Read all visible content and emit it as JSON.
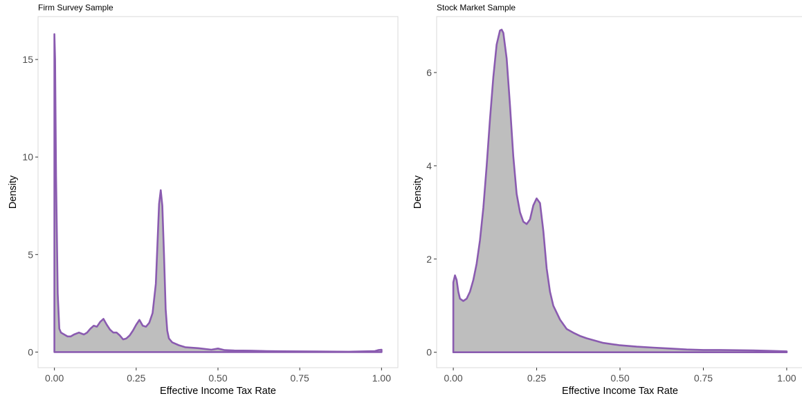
{
  "colors": {
    "line": "#8a5bb0",
    "fill": "#bebebe",
    "border": "#d9d9d9",
    "tick_text": "#4d4d4d"
  },
  "chart_data": [
    {
      "type": "area",
      "title": "Firm Survey Sample",
      "xlabel": "Effective Income Tax Rate",
      "ylabel": "Density",
      "xlim": [
        -0.05,
        1.05
      ],
      "ylim": [
        -0.8,
        17.2
      ],
      "grid": false,
      "x_ticks": [
        0,
        0.25,
        0.5,
        0.75,
        1
      ],
      "x_tick_labels": [
        "0.00",
        "0.25",
        "0.50",
        "0.75",
        "1.00"
      ],
      "y_ticks": [
        0,
        5,
        10,
        15
      ],
      "y_tick_labels": [
        "0",
        "5",
        "10",
        "15"
      ],
      "series": [
        {
          "x": [
            0.0,
            0.002,
            0.005,
            0.01,
            0.015,
            0.02,
            0.03,
            0.04,
            0.05,
            0.06,
            0.075,
            0.09,
            0.1,
            0.11,
            0.12,
            0.13,
            0.14,
            0.15,
            0.16,
            0.17,
            0.18,
            0.19,
            0.2,
            0.21,
            0.22,
            0.23,
            0.24,
            0.25,
            0.26,
            0.27,
            0.28,
            0.29,
            0.3,
            0.31,
            0.315,
            0.32,
            0.325,
            0.33,
            0.335,
            0.34,
            0.345,
            0.35,
            0.36,
            0.38,
            0.4,
            0.44,
            0.48,
            0.5,
            0.52,
            0.55,
            0.6,
            0.65,
            0.7,
            0.8,
            0.9,
            0.98,
            0.99,
            1.0
          ],
          "y": [
            16.3,
            15.0,
            9.0,
            3.0,
            1.2,
            1.0,
            0.9,
            0.8,
            0.8,
            0.9,
            1.0,
            0.9,
            1.0,
            1.2,
            1.35,
            1.3,
            1.55,
            1.7,
            1.4,
            1.15,
            1.0,
            1.0,
            0.85,
            0.65,
            0.7,
            0.85,
            1.1,
            1.4,
            1.65,
            1.35,
            1.3,
            1.5,
            2.0,
            3.5,
            5.5,
            7.6,
            8.3,
            7.5,
            5.0,
            2.2,
            1.1,
            0.7,
            0.5,
            0.35,
            0.25,
            0.2,
            0.12,
            0.18,
            0.1,
            0.08,
            0.07,
            0.05,
            0.04,
            0.03,
            0.02,
            0.05,
            0.1,
            0.12
          ]
        }
      ]
    },
    {
      "type": "area",
      "title": "Stock Market Sample",
      "xlabel": "Effective Income Tax Rate",
      "ylabel": "Density",
      "xlim": [
        -0.05,
        1.05
      ],
      "ylim": [
        -0.33,
        7.2
      ],
      "grid": false,
      "x_ticks": [
        0,
        0.25,
        0.5,
        0.75,
        1
      ],
      "x_tick_labels": [
        "0.00",
        "0.25",
        "0.50",
        "0.75",
        "1.00"
      ],
      "y_ticks": [
        0,
        2,
        4,
        6
      ],
      "y_tick_labels": [
        "0",
        "2",
        "4",
        "6"
      ],
      "series": [
        {
          "x": [
            0.0,
            0.005,
            0.01,
            0.015,
            0.02,
            0.03,
            0.04,
            0.05,
            0.06,
            0.07,
            0.08,
            0.09,
            0.1,
            0.11,
            0.12,
            0.13,
            0.14,
            0.145,
            0.15,
            0.16,
            0.17,
            0.18,
            0.19,
            0.2,
            0.21,
            0.22,
            0.23,
            0.24,
            0.25,
            0.26,
            0.27,
            0.28,
            0.29,
            0.3,
            0.32,
            0.34,
            0.36,
            0.38,
            0.4,
            0.45,
            0.5,
            0.55,
            0.6,
            0.65,
            0.7,
            0.75,
            0.8,
            0.9,
            0.95,
            1.0
          ],
          "y": [
            1.5,
            1.65,
            1.55,
            1.3,
            1.15,
            1.1,
            1.15,
            1.3,
            1.55,
            1.9,
            2.4,
            3.1,
            4.0,
            5.0,
            5.9,
            6.6,
            6.9,
            6.92,
            6.85,
            6.3,
            5.3,
            4.2,
            3.4,
            3.0,
            2.8,
            2.75,
            2.85,
            3.15,
            3.3,
            3.2,
            2.6,
            1.8,
            1.3,
            1.0,
            0.7,
            0.5,
            0.42,
            0.35,
            0.3,
            0.2,
            0.15,
            0.12,
            0.1,
            0.08,
            0.06,
            0.05,
            0.05,
            0.04,
            0.03,
            0.02
          ]
        }
      ]
    }
  ]
}
